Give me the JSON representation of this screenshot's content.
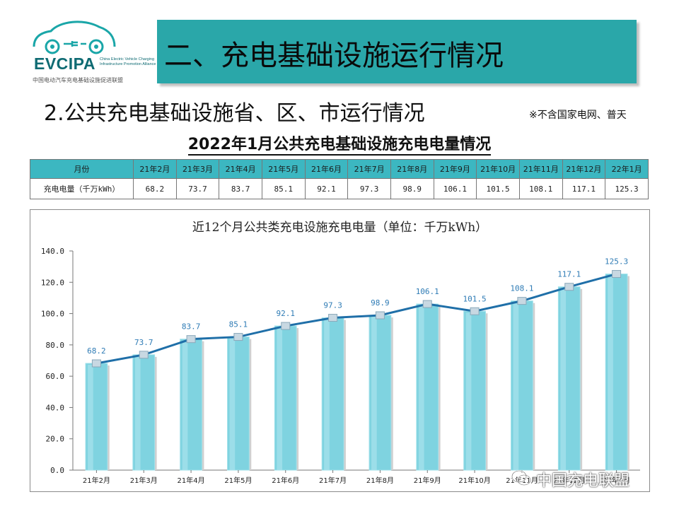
{
  "logo": {
    "acronym": "EVCIPA",
    "english": "China Electric Vehicle Charging Infrastructure Promotion Alliance",
    "chinese": "中国电动汽车充电基础设施促进联盟"
  },
  "header": {
    "title": "二、充电基础设施运行情况",
    "subtitle": "2.公共充电基础设施省、区、市运行情况",
    "note": "※不含国家电网、普天"
  },
  "table": {
    "title": "2022年1月公共充电基础设施充电电量情况",
    "header_label": "月份",
    "row_label": "充电电量（千万kWh）",
    "months": [
      "21年2月",
      "21年3月",
      "21年4月",
      "21年5月",
      "21年6月",
      "21年7月",
      "21年8月",
      "21年9月",
      "21年10月",
      "21年11月",
      "21年12月",
      "22年1月"
    ],
    "values": [
      "68.2",
      "73.7",
      "83.7",
      "85.1",
      "92.1",
      "97.3",
      "98.9",
      "106.1",
      "101.5",
      "108.1",
      "117.1",
      "125.3"
    ]
  },
  "chart_data": {
    "type": "bar",
    "title": "近12个月公共类充电设施充电电量（单位：千万kWh）",
    "categories": [
      "21年2月",
      "21年3月",
      "21年4月",
      "21年5月",
      "21年6月",
      "21年7月",
      "21年8月",
      "21年9月",
      "21年10月",
      "21年11月",
      "21年12月",
      "22年1月"
    ],
    "series": [
      {
        "type": "bar",
        "values": [
          68.2,
          73.7,
          83.7,
          85.1,
          92.1,
          97.3,
          98.9,
          106.1,
          101.5,
          108.1,
          117.1,
          125.3
        ]
      },
      {
        "type": "line",
        "values": [
          68.2,
          73.7,
          83.7,
          85.1,
          92.1,
          97.3,
          98.9,
          106.1,
          101.5,
          108.1,
          117.1,
          125.3
        ]
      }
    ],
    "ylim": [
      0,
      140
    ],
    "yticks": [
      "0.0",
      "20.0",
      "40.0",
      "60.0",
      "80.0",
      "100.0",
      "120.0",
      "140.0"
    ],
    "grid": false,
    "colors": {
      "bar": "#7fd3e0",
      "line": "#1f6fa8",
      "marker": "#c8d8e2",
      "label": "#2e7bb5"
    }
  },
  "watermark": "中国充电联盟"
}
